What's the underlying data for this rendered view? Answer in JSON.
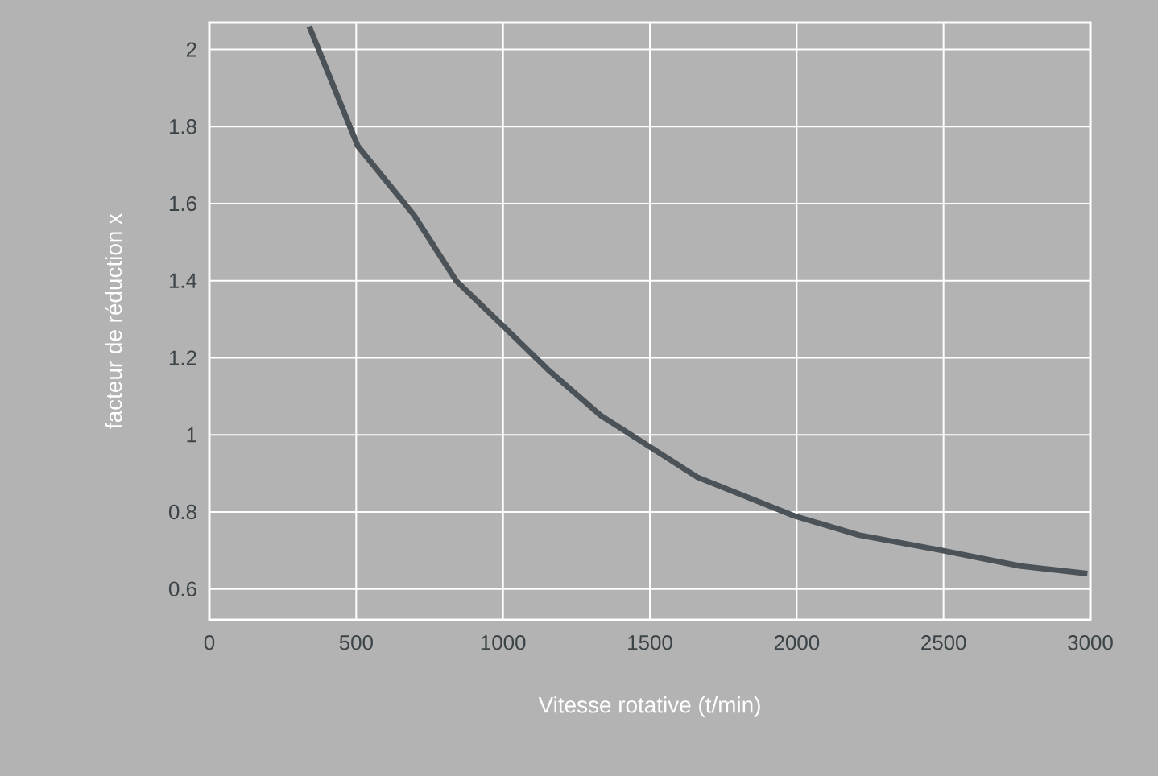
{
  "chart_data": {
    "type": "line",
    "xlabel": "Vitesse rotative (t/min)",
    "ylabel": "facteur de réduction x",
    "x": [
      340,
      505,
      697,
      840,
      1004,
      1152,
      1333,
      1498,
      1662,
      1991,
      2211,
      2496,
      2759,
      2990
    ],
    "series": [
      {
        "color": "#4b5359",
        "values": [
          2.06,
          1.75,
          1.57,
          1.4,
          1.28,
          1.17,
          1.05,
          0.97,
          0.89,
          0.79,
          0.74,
          0.7,
          0.66,
          0.64
        ]
      }
    ],
    "xlim": [
      0,
      3000
    ],
    "ylim": [
      0.52,
      2.07
    ],
    "xticks": [
      0,
      500,
      1000,
      1500,
      2000,
      2500,
      3000
    ],
    "yticks": [
      0.6,
      0.8,
      1,
      1.2,
      1.4,
      1.6,
      1.8,
      2
    ],
    "grid": true
  }
}
